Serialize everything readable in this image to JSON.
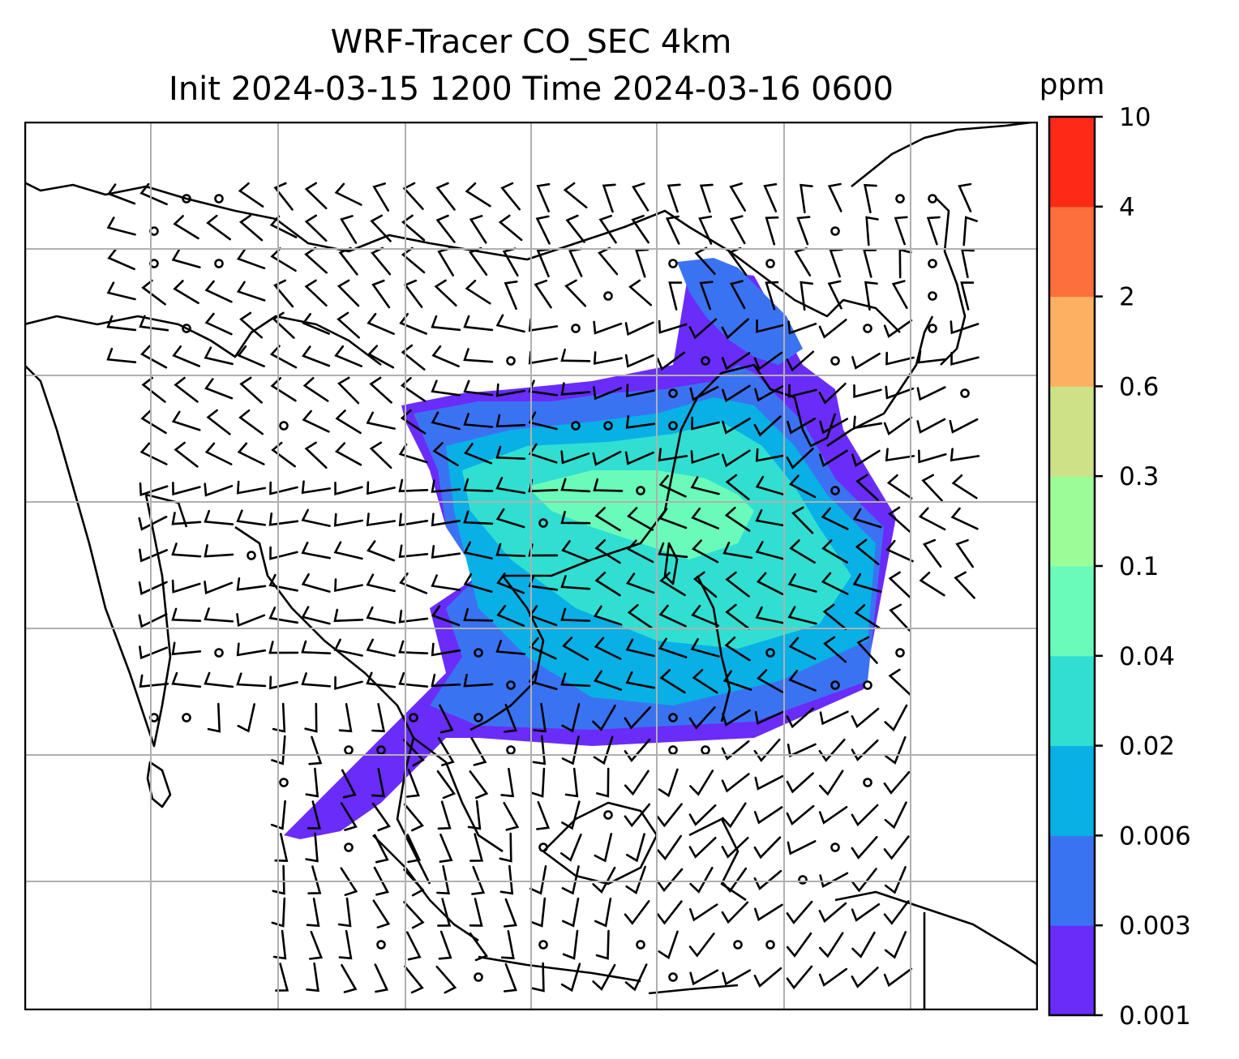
{
  "title": {
    "line1": "WRF-Tracer CO_SEC 4km",
    "line2": "Init 2024-03-15 1200 Time 2024-03-16 0600"
  },
  "colorbar": {
    "unit": "ppm",
    "levels": [
      "0.001",
      "0.003",
      "0.006",
      "0.02",
      "0.04",
      "0.1",
      "0.3",
      "0.6",
      "2",
      "4",
      "10"
    ],
    "colors": [
      "#6a2cf9",
      "#3a73f2",
      "#08b0e6",
      "#30dfd2",
      "#6afbba",
      "#9afd98",
      "#cfe186",
      "#fdb062",
      "#fd6f3b",
      "#fe2a17"
    ]
  },
  "map": {
    "gridlines": true,
    "coastline_color": "#000000",
    "wind_barb_color": "#000000",
    "grid_color": "#b0b0b0"
  }
}
